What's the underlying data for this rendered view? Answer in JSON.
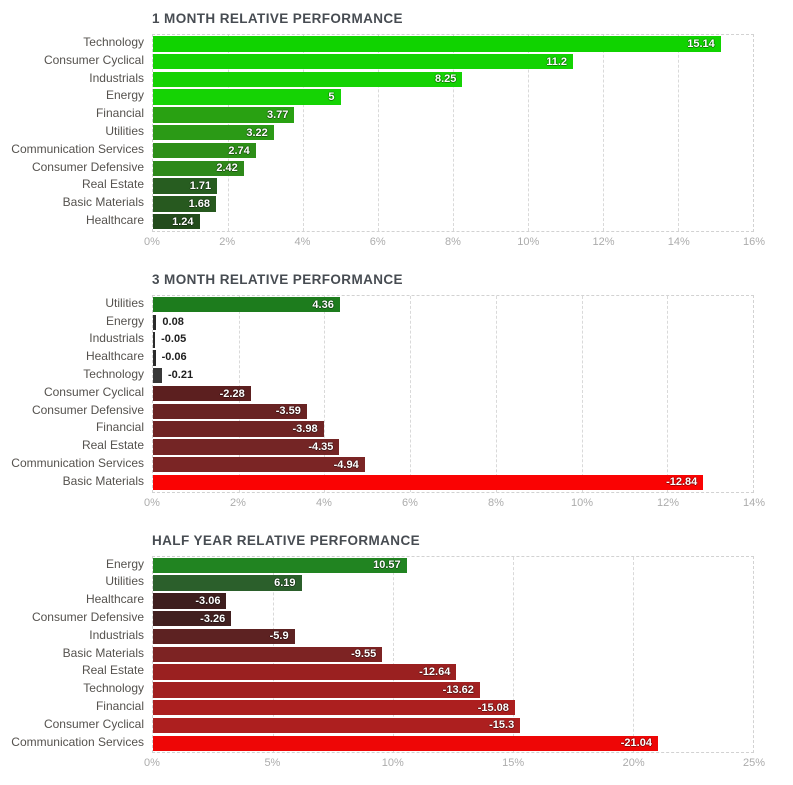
{
  "page": {
    "background": "#ffffff"
  },
  "colors": {
    "title_text": "#474c52",
    "category_text": "#55524e",
    "tick_text": "#acacac",
    "grid_dash": "#d9d9d9",
    "value_inside_text": "#ffffff",
    "value_outside_text": "#1e1e1e"
  },
  "chart_data": [
    {
      "type": "bar",
      "orientation": "horizontal",
      "title": "1 MONTH RELATIVE PERFORMANCE",
      "xlabel": "",
      "ylabel": "",
      "axis_max": 16,
      "grid": true,
      "tick_labels": [
        "0%",
        "2%",
        "4%",
        "6%",
        "8%",
        "10%",
        "12%",
        "14%",
        "16%"
      ],
      "tick_values": [
        0,
        2,
        4,
        6,
        8,
        10,
        12,
        14,
        16
      ],
      "categories": [
        "Technology",
        "Consumer Cyclical",
        "Industrials",
        "Energy",
        "Financial",
        "Utilities",
        "Communication Services",
        "Consumer Defensive",
        "Real Estate",
        "Basic Materials",
        "Healthcare"
      ],
      "values": [
        15.14,
        11.2,
        8.25,
        5,
        3.77,
        3.22,
        2.74,
        2.42,
        1.71,
        1.68,
        1.24
      ],
      "bars": [
        {
          "label": "Technology",
          "value": 15.14,
          "display": "15.14",
          "color": "#10d300"
        },
        {
          "label": "Consumer Cyclical",
          "value": 11.2,
          "display": "11.2",
          "color": "#13d302"
        },
        {
          "label": "Industrials",
          "value": 8.25,
          "display": "8.25",
          "color": "#15d204"
        },
        {
          "label": "Energy",
          "value": 5,
          "display": "5",
          "color": "#15d304"
        },
        {
          "label": "Financial",
          "value": 3.77,
          "display": "3.77",
          "color": "#29a112"
        },
        {
          "label": "Utilities",
          "value": 3.22,
          "display": "3.22",
          "color": "#2b9a16"
        },
        {
          "label": "Communication Services",
          "value": 2.74,
          "display": "2.74",
          "color": "#2d8f18"
        },
        {
          "label": "Consumer Defensive",
          "value": 2.42,
          "display": "2.42",
          "color": "#2e891a"
        },
        {
          "label": "Real Estate",
          "value": 1.71,
          "display": "1.71",
          "color": "#275d20"
        },
        {
          "label": "Basic Materials",
          "value": 1.68,
          "display": "1.68",
          "color": "#27591f"
        },
        {
          "label": "Healthcare",
          "value": 1.24,
          "display": "1.24",
          "color": "#234b1c"
        }
      ]
    },
    {
      "type": "bar",
      "orientation": "horizontal",
      "title": "3 MONTH RELATIVE PERFORMANCE",
      "xlabel": "",
      "ylabel": "",
      "axis_max": 14,
      "grid": true,
      "tick_labels": [
        "0%",
        "2%",
        "4%",
        "6%",
        "8%",
        "10%",
        "12%",
        "14%"
      ],
      "tick_values": [
        0,
        2,
        4,
        6,
        8,
        10,
        12,
        14
      ],
      "categories": [
        "Utilities",
        "Energy",
        "Industrials",
        "Healthcare",
        "Technology",
        "Consumer Cyclical",
        "Consumer Defensive",
        "Financial",
        "Real Estate",
        "Communication Services",
        "Basic Materials"
      ],
      "values": [
        4.36,
        0.08,
        -0.05,
        -0.06,
        -0.21,
        -2.28,
        -3.59,
        -3.98,
        -4.35,
        -4.94,
        -12.84
      ],
      "bars": [
        {
          "label": "Utilities",
          "value": 4.36,
          "display": "4.36",
          "color": "#1d7c1d"
        },
        {
          "label": "Energy",
          "value": 0.08,
          "display": "0.08",
          "color": "#2b2b2b"
        },
        {
          "label": "Industrials",
          "value": -0.05,
          "display": "-0.05",
          "color": "#2b2b2b"
        },
        {
          "label": "Healthcare",
          "value": -0.06,
          "display": "-0.06",
          "color": "#2b2b2b"
        },
        {
          "label": "Technology",
          "value": -0.21,
          "display": "-0.21",
          "color": "#383838"
        },
        {
          "label": "Consumer Cyclical",
          "value": -2.28,
          "display": "-2.28",
          "color": "#5c1f1f"
        },
        {
          "label": "Consumer Defensive",
          "value": -3.59,
          "display": "-3.59",
          "color": "#692323"
        },
        {
          "label": "Financial",
          "value": -3.98,
          "display": "-3.98",
          "color": "#6f2424"
        },
        {
          "label": "Real Estate",
          "value": -4.35,
          "display": "-4.35",
          "color": "#742525"
        },
        {
          "label": "Communication Services",
          "value": -4.94,
          "display": "-4.94",
          "color": "#7b2525"
        },
        {
          "label": "Basic Materials",
          "value": -12.84,
          "display": "-12.84",
          "color": "#fa0303"
        }
      ]
    },
    {
      "type": "bar",
      "orientation": "horizontal",
      "title": "HALF YEAR RELATIVE PERFORMANCE",
      "xlabel": "",
      "ylabel": "",
      "axis_max": 25,
      "grid": true,
      "tick_labels": [
        "0%",
        "5%",
        "10%",
        "15%",
        "20%",
        "25%"
      ],
      "tick_values": [
        0,
        5,
        10,
        15,
        20,
        25
      ],
      "categories": [
        "Energy",
        "Utilities",
        "Healthcare",
        "Consumer Defensive",
        "Industrials",
        "Basic Materials",
        "Real Estate",
        "Technology",
        "Financial",
        "Consumer Cyclical",
        "Communication Services"
      ],
      "values": [
        10.57,
        6.19,
        -3.06,
        -3.26,
        -5.9,
        -9.55,
        -12.64,
        -13.62,
        -15.08,
        -15.3,
        -21.04
      ],
      "bars": [
        {
          "label": "Energy",
          "value": 10.57,
          "display": "10.57",
          "color": "#218421"
        },
        {
          "label": "Utilities",
          "value": 6.19,
          "display": "6.19",
          "color": "#2b5f2b"
        },
        {
          "label": "Healthcare",
          "value": -3.06,
          "display": "-3.06",
          "color": "#3e1e1e"
        },
        {
          "label": "Consumer Defensive",
          "value": -3.26,
          "display": "-3.26",
          "color": "#412020"
        },
        {
          "label": "Industrials",
          "value": -5.9,
          "display": "-5.9",
          "color": "#5d2222"
        },
        {
          "label": "Basic Materials",
          "value": -9.55,
          "display": "-9.55",
          "color": "#7d2323"
        },
        {
          "label": "Real Estate",
          "value": -12.64,
          "display": "-12.64",
          "color": "#9a2020"
        },
        {
          "label": "Technology",
          "value": -13.62,
          "display": "-13.62",
          "color": "#a22121"
        },
        {
          "label": "Financial",
          "value": -15.08,
          "display": "-15.08",
          "color": "#ac1f1f"
        },
        {
          "label": "Consumer Cyclical",
          "value": -15.3,
          "display": "-15.3",
          "color": "#ad1f1f"
        },
        {
          "label": "Communication Services",
          "value": -21.04,
          "display": "-21.04",
          "color": "#ee0606"
        }
      ]
    }
  ]
}
